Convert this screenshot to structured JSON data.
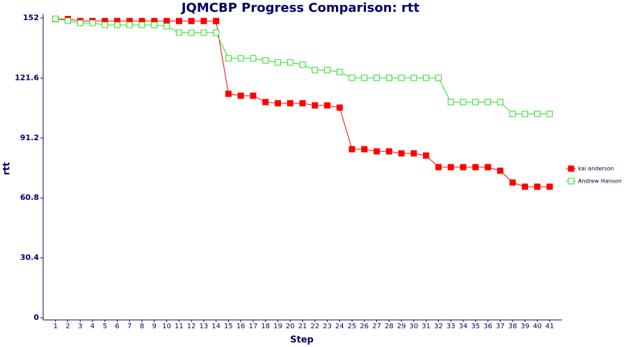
{
  "chart_data": {
    "type": "line",
    "title": "JQMCBP Progress Comparison: rtt",
    "x_label": "Step",
    "y_label": "rtt",
    "x": [
      1,
      2,
      3,
      4,
      5,
      6,
      7,
      8,
      9,
      10,
      11,
      12,
      13,
      14,
      15,
      16,
      17,
      18,
      19,
      20,
      21,
      22,
      23,
      24,
      25,
      26,
      27,
      28,
      29,
      30,
      31,
      32,
      33,
      34,
      35,
      36,
      37,
      38,
      39,
      40,
      41
    ],
    "xlim": [
      0,
      42
    ],
    "xticks": [
      1,
      2,
      3,
      4,
      5,
      6,
      7,
      8,
      9,
      10,
      11,
      12,
      13,
      14,
      15,
      16,
      17,
      18,
      19,
      20,
      21,
      22,
      23,
      24,
      25,
      26,
      27,
      28,
      29,
      30,
      31,
      32,
      33,
      34,
      35,
      36,
      37,
      38,
      39,
      40,
      41
    ],
    "ylim": [
      0,
      152
    ],
    "yticks": [
      0,
      30.4,
      60.8,
      91.2,
      121.6,
      152
    ],
    "legend": "right",
    "series": [
      {
        "name": "kai anderson",
        "color": "#ff0000",
        "marker": "filled",
        "values": [
          151.5,
          151.5,
          150.5,
          150.5,
          150.5,
          150.5,
          150.5,
          150.5,
          150.5,
          150.5,
          150.5,
          150.5,
          150.5,
          150.5,
          113.6,
          112.6,
          112.6,
          109.4,
          108.8,
          108.8,
          108.8,
          107.7,
          107.7,
          106.6,
          85.5,
          85.5,
          84.4,
          84.4,
          83.4,
          83.4,
          82.3,
          76.4,
          76.4,
          76.4,
          76.4,
          76.4,
          74.6,
          68.6,
          66.5,
          66.5,
          66.5
        ]
      },
      {
        "name": "Andrew Hanson",
        "color": "#22dd22",
        "marker": "hollow",
        "values": [
          151.6,
          150.6,
          149.5,
          149.5,
          148.5,
          148.5,
          148.5,
          148.5,
          148.5,
          147.8,
          144.6,
          144.6,
          144.6,
          144.6,
          131.6,
          131.6,
          131.6,
          130.5,
          129.5,
          129.5,
          128.4,
          125.6,
          125.6,
          124.6,
          121.7,
          121.7,
          121.7,
          121.7,
          121.7,
          121.7,
          121.7,
          121.7,
          109.4,
          109.4,
          109.4,
          109.4,
          109.4,
          103.4,
          103.4,
          103.4,
          103.4
        ]
      }
    ]
  }
}
